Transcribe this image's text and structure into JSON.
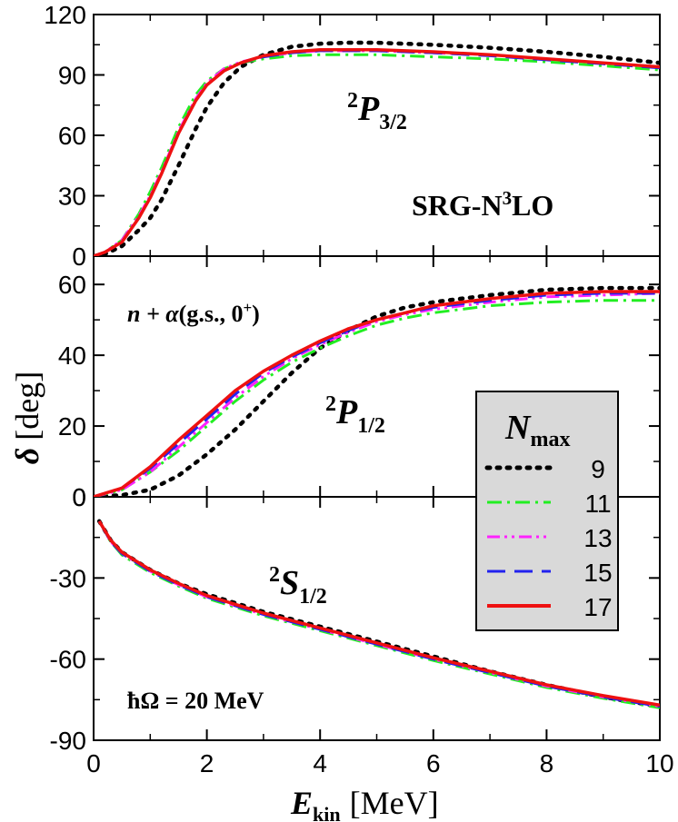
{
  "chart_data": {
    "type": "line",
    "xlabel": "E",
    "xlabel_sub": "kin",
    "xlabel_unit": "[MeV]",
    "ylabel": "δ",
    "ylabel_unit": "[deg]",
    "xlim": [
      0,
      10
    ],
    "x_ticks": [
      "0",
      "2",
      "4",
      "6",
      "8",
      "10"
    ],
    "annotations": {
      "interaction": "SRG-N",
      "interaction_sup": "3",
      "interaction_end": "LO",
      "system_pre": "n + α",
      "system_post": "(g.s., 0",
      "system_sup": "+",
      "system_end": ")",
      "hbar_omega": "ħΩ = 20 MeV"
    },
    "legend": {
      "title": "N",
      "title_sub": "max",
      "position": "right-center",
      "entries": [
        {
          "label": "9",
          "color": "#000000",
          "style": "dotted"
        },
        {
          "label": "11",
          "color": "#22ee22",
          "style": "dash-dot"
        },
        {
          "label": "13",
          "color": "#ff22ff",
          "style": "dash-dot-dot"
        },
        {
          "label": "15",
          "color": "#2222ee",
          "style": "dashed"
        },
        {
          "label": "17",
          "color": "#ee1111",
          "style": "solid"
        }
      ]
    },
    "panels": [
      {
        "name": "P3/2",
        "label_main": "P",
        "label_sup": "2",
        "label_sub": "3/2",
        "ylim": [
          0,
          120
        ],
        "y_ticks": [
          "0",
          "30",
          "60",
          "90",
          "120"
        ],
        "x": [
          0,
          0.2,
          0.5,
          0.8,
          1.0,
          1.2,
          1.5,
          1.8,
          2.0,
          2.3,
          2.6,
          3.0,
          3.5,
          4.0,
          4.5,
          5.0,
          6.0,
          7.0,
          8.0,
          9.0,
          10.0
        ],
        "series": [
          {
            "name": "9",
            "values": [
              0,
              1,
              5,
              13,
              19,
              28,
              45,
              63,
              74,
              86,
              94,
              100,
              104,
              105.5,
              106,
              106,
              105,
              103.5,
              101.5,
              99,
              96
            ]
          },
          {
            "name": "11",
            "values": [
              0,
              2,
              8,
              21,
              32,
              44,
              64,
              80,
              87,
              93,
              96,
              98,
              99.5,
              100,
              100,
              100,
              99,
              98,
              96.5,
              94.5,
              92.5
            ]
          },
          {
            "name": "13",
            "values": [
              0,
              2,
              8,
              20,
              30,
              42,
              62,
              78,
              86,
              93,
              96.5,
              99,
              101,
              102,
              102,
              102,
              101,
              100,
              98,
              96,
              94
            ]
          },
          {
            "name": "15",
            "values": [
              0,
              2,
              7,
              19,
              29,
              41,
              61,
              77,
              85,
              92,
              96,
              99,
              101,
              102,
              102,
              102,
              101,
              99.5,
              97.5,
              95.5,
              93.5
            ]
          },
          {
            "name": "17",
            "values": [
              0,
              2,
              7,
              19,
              29,
              41,
              61,
              77,
              85,
              92,
              96,
              99.5,
              101.5,
              102.5,
              102.5,
              102.5,
              101.5,
              100,
              98,
              96,
              94
            ]
          }
        ]
      },
      {
        "name": "P1/2",
        "label_main": "P",
        "label_sup": "2",
        "label_sub": "1/2",
        "ylim": [
          0,
          68
        ],
        "y_ticks": [
          "0",
          "20",
          "40",
          "60"
        ],
        "x": [
          0,
          0.5,
          1.0,
          1.5,
          2.0,
          2.5,
          3.0,
          3.5,
          4.0,
          4.5,
          5.0,
          5.5,
          6.0,
          7.0,
          8.0,
          9.0,
          10.0
        ],
        "series": [
          {
            "name": "9",
            "values": [
              0,
              0.5,
              2,
              6,
              12,
              19,
              27,
              35,
              42,
              47,
              51,
              53.5,
              55,
              57,
              58.5,
              59,
              59
            ]
          },
          {
            "name": "11",
            "values": [
              0,
              2,
              7,
              13,
              20,
              27,
              33,
              38,
              42,
              45.5,
              48.5,
              50.5,
              52,
              54,
              55,
              55.5,
              55.5
            ]
          },
          {
            "name": "13",
            "values": [
              0,
              2,
              7,
              14,
              21,
              28,
              34,
              39,
              43,
              46.5,
              49.5,
              51.5,
              53,
              55,
              56.5,
              57,
              57.5
            ]
          },
          {
            "name": "15",
            "values": [
              0,
              2.5,
              8,
              15,
              22,
              29,
              35,
              39.5,
              43.5,
              47,
              50,
              52,
              53.5,
              55.5,
              57,
              57.5,
              57.5
            ]
          },
          {
            "name": "17",
            "values": [
              0,
              2.5,
              8.5,
              16,
              23,
              30,
              35.5,
              40,
              44,
              47.5,
              50,
              52,
              54,
              56,
              57.5,
              58,
              58
            ]
          }
        ]
      },
      {
        "name": "S1/2",
        "label_main": "S",
        "label_sup": "2",
        "label_sub": "1/2",
        "ylim": [
          -90,
          0
        ],
        "y_ticks": [
          "-90",
          "-60",
          "-30",
          "0"
        ],
        "x": [
          0.1,
          0.3,
          0.5,
          1.0,
          1.5,
          2.0,
          3.0,
          4.0,
          5.0,
          6.0,
          7.0,
          8.0,
          9.0,
          10.0
        ],
        "series": [
          {
            "name": "9",
            "values": [
              -9,
              -16,
              -20.5,
              -27,
              -32,
              -36,
              -42.5,
              -48,
              -53.5,
              -59,
              -64.5,
              -69.5,
              -74,
              -77.5
            ]
          },
          {
            "name": "11",
            "values": [
              -9,
              -16.5,
              -21.5,
              -28,
              -33,
              -37.5,
              -44,
              -49.5,
              -55,
              -60.5,
              -65.5,
              -70.5,
              -74.5,
              -78
            ]
          },
          {
            "name": "13",
            "values": [
              -9,
              -16.5,
              -21,
              -27.5,
              -32.5,
              -37,
              -43.5,
              -49,
              -54.5,
              -60,
              -65,
              -70,
              -74,
              -77.5
            ]
          },
          {
            "name": "15",
            "values": [
              -9,
              -16.5,
              -21,
              -27.5,
              -32.5,
              -37,
              -43.5,
              -49,
              -54.5,
              -60,
              -65,
              -70,
              -74,
              -77.5
            ]
          },
          {
            "name": "17",
            "values": [
              -9,
              -16,
              -20.5,
              -27,
              -32,
              -36.5,
              -43,
              -48.5,
              -54,
              -59.5,
              -64.5,
              -69.5,
              -73.5,
              -77
            ]
          }
        ]
      }
    ]
  }
}
